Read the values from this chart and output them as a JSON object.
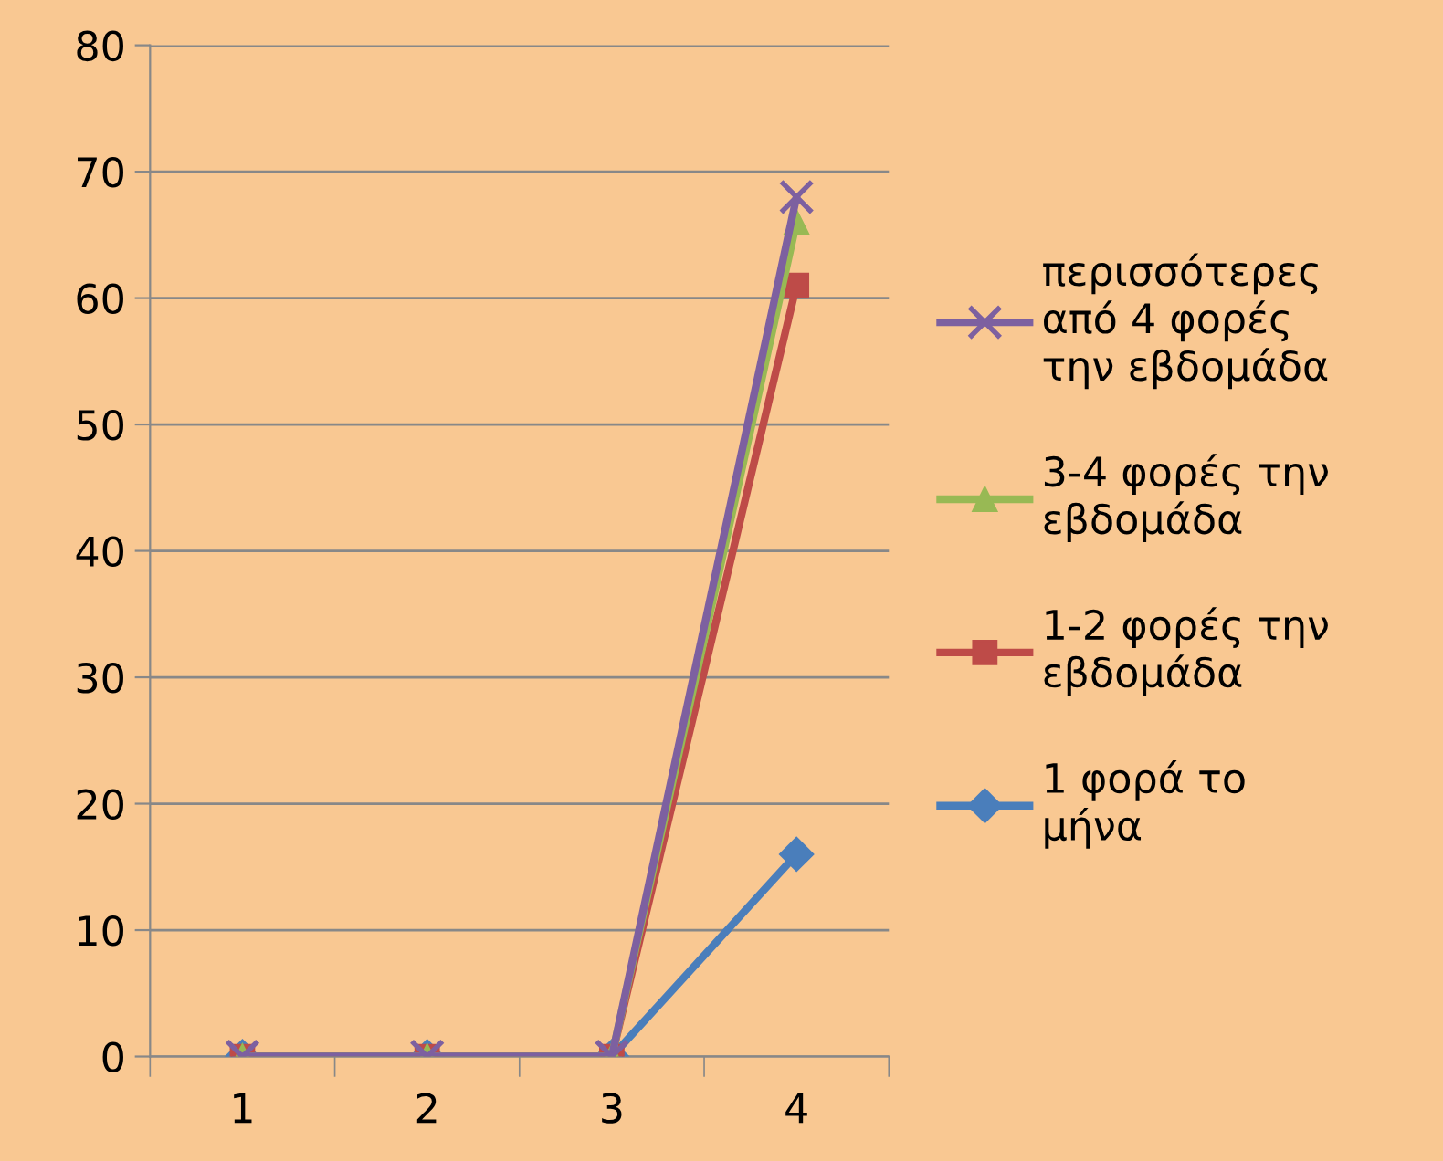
{
  "chart_data": {
    "type": "line",
    "categories": [
      "1",
      "2",
      "3",
      "4"
    ],
    "series": [
      {
        "name": "1 φορά το\nμήνα",
        "color": "#4a7ebb",
        "marker": "diamond",
        "values": [
          0,
          0,
          0,
          16
        ]
      },
      {
        "name": "1-2 φορές την\nεβδομάδα",
        "color": "#be4b48",
        "marker": "square",
        "values": [
          0,
          0,
          0,
          61
        ]
      },
      {
        "name": "3-4 φορές την\nεβδομάδα",
        "color": "#98b954",
        "marker": "triangle",
        "values": [
          0,
          0,
          0,
          66
        ]
      },
      {
        "name": "περισσότερες\nαπό 4 φορές\nτην εβδομάδα",
        "color": "#7d60a0",
        "marker": "cross",
        "values": [
          0,
          0,
          0,
          68
        ]
      }
    ],
    "ylim": [
      0,
      80
    ],
    "yticks": [
      0,
      10,
      20,
      30,
      40,
      50,
      60,
      70,
      80
    ],
    "grid": "y",
    "legend": "right"
  }
}
